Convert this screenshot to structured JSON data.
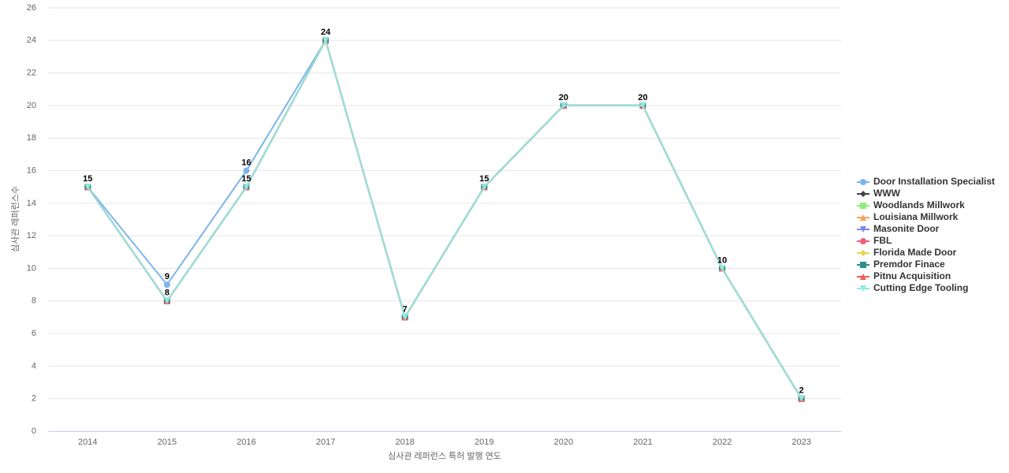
{
  "chart_data": {
    "type": "line",
    "x_label": "심사관 레퍼런스 특허 발행 연도",
    "y_label": "심사관 레퍼런스수",
    "categories": [
      "2014",
      "2015",
      "2016",
      "2017",
      "2018",
      "2019",
      "2020",
      "2021",
      "2022",
      "2023"
    ],
    "ylim": [
      0,
      26
    ],
    "yticks": [
      0,
      2,
      4,
      6,
      8,
      10,
      12,
      14,
      16,
      18,
      20,
      22,
      24,
      26
    ],
    "grid": true,
    "legend": "right",
    "series": [
      {
        "name": "Door Installation Specialist",
        "color": "#7cb5ec",
        "values": [
          15,
          9,
          16,
          24,
          7,
          15,
          20,
          20,
          10,
          2
        ]
      },
      {
        "name": "WWW",
        "color": "#434348",
        "values": [
          15,
          8,
          15,
          24,
          7,
          15,
          20,
          20,
          10,
          2
        ]
      },
      {
        "name": "Woodlands Millwork",
        "color": "#90ed7d",
        "values": [
          15,
          8,
          15,
          24,
          7,
          15,
          20,
          20,
          10,
          2
        ]
      },
      {
        "name": "Louisiana Millwork",
        "color": "#f7a35c",
        "values": [
          15,
          8,
          15,
          24,
          7,
          15,
          20,
          20,
          10,
          2
        ]
      },
      {
        "name": "Masonite Door",
        "color": "#8085e9",
        "values": [
          15,
          8,
          15,
          24,
          7,
          15,
          20,
          20,
          10,
          2
        ]
      },
      {
        "name": "FBL",
        "color": "#f15c80",
        "values": [
          15,
          8,
          15,
          24,
          7,
          15,
          20,
          20,
          10,
          2
        ]
      },
      {
        "name": "Florida Made Door",
        "color": "#e4d354",
        "values": [
          15,
          8,
          15,
          24,
          7,
          15,
          20,
          20,
          10,
          2
        ]
      },
      {
        "name": "Premdor Finace",
        "color": "#2b908f",
        "values": [
          15,
          8,
          15,
          24,
          7,
          15,
          20,
          20,
          10,
          2
        ]
      },
      {
        "name": "Pitnu Acquisition",
        "color": "#f45b5b",
        "values": [
          15,
          8,
          15,
          24,
          7,
          15,
          20,
          20,
          10,
          2
        ]
      },
      {
        "name": "Cutting Edge Tooling",
        "color": "#91e8e1",
        "values": [
          15,
          8,
          15,
          24,
          7,
          15,
          20,
          20,
          10,
          2
        ]
      }
    ]
  }
}
